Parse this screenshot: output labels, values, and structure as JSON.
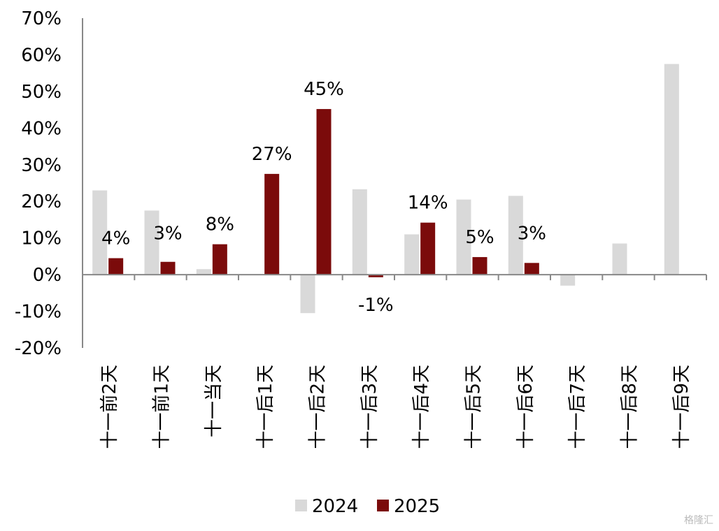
{
  "chart_data": {
    "type": "bar",
    "categories": [
      "十一前2天",
      "十一前1天",
      "十一当天",
      "十一后1天",
      "十一后2天",
      "十一后3天",
      "十一后4天",
      "十一后5天",
      "十一后6天",
      "十一后7天",
      "十一后8天",
      "十一后9天"
    ],
    "series": [
      {
        "name": "2024",
        "color": "#d9d9d9",
        "values": [
          23,
          17.5,
          1.5,
          null,
          -10.5,
          23.3,
          11,
          20.5,
          21.5,
          -3,
          8.5,
          57.5
        ]
      },
      {
        "name": "2025",
        "color": "#7b0b0b",
        "values": [
          4.5,
          3.5,
          8.3,
          27.5,
          45.2,
          -0.7,
          14.2,
          4.8,
          3.2,
          null,
          null,
          null
        ]
      }
    ],
    "data_labels": {
      "2025": [
        "4%",
        "3%",
        "8%",
        "27%",
        "45%",
        "-1%",
        "14%",
        "5%",
        "3%",
        null,
        null,
        null
      ]
    },
    "yticks": [
      "70%",
      "60%",
      "50%",
      "40%",
      "30%",
      "20%",
      "10%",
      "0%",
      "-10%",
      "-20%"
    ],
    "ylim": [
      -20,
      70
    ],
    "ylabel": "",
    "xlabel": "",
    "legend_position": "bottom",
    "grid": false
  },
  "watermark": "格隆汇"
}
